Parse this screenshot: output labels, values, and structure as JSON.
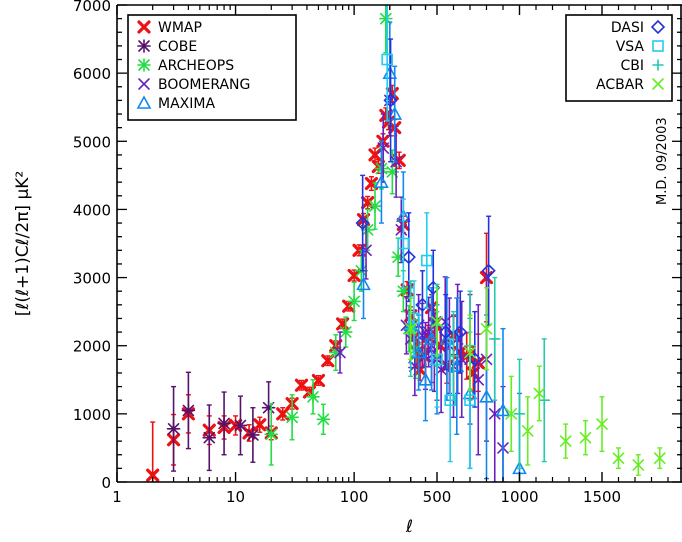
{
  "chart_data": {
    "type": "scatter",
    "title": "",
    "xlabel": "ℓ",
    "ylabel": "[ℓ(ℓ+1)Cℓ/2π] μK²",
    "annotation": "M.D. 09/2003",
    "x_scale": "log-then-linear",
    "x_break": 500,
    "xlim": [
      1,
      1950
    ],
    "ylim": [
      0,
      7000
    ],
    "x_ticks": [
      1,
      10,
      100,
      500,
      1000,
      1500
    ],
    "x_tick_labels": [
      "1",
      "10",
      "100",
      "500",
      "1000",
      "1500"
    ],
    "y_ticks": [
      0,
      1000,
      2000,
      3000,
      4000,
      5000,
      6000,
      7000
    ],
    "y_tick_labels": [
      "0",
      "1000",
      "2000",
      "3000",
      "4000",
      "5000",
      "6000",
      "7000"
    ],
    "grid": false,
    "legend_left": {
      "position": "top-left",
      "entries": [
        {
          "name": "WMAP",
          "color": "#ee1111",
          "marker": "x-bold"
        },
        {
          "name": "COBE",
          "color": "#55116b",
          "marker": "asterisk"
        },
        {
          "name": "ARCHEOPS",
          "color": "#22dd44",
          "marker": "asterisk"
        },
        {
          "name": "BOOMERANG",
          "color": "#6a1fc0",
          "marker": "x"
        },
        {
          "name": "MAXIMA",
          "color": "#1188ee",
          "marker": "triangle"
        }
      ]
    },
    "legend_right": {
      "position": "top-right",
      "entries": [
        {
          "name": "DASI",
          "color": "#2233dd",
          "marker": "diamond"
        },
        {
          "name": "VSA",
          "color": "#22ccee",
          "marker": "square"
        },
        {
          "name": "CBI",
          "color": "#22ccaa",
          "marker": "plus"
        },
        {
          "name": "ACBAR",
          "color": "#66ee22",
          "marker": "x"
        }
      ]
    },
    "series": [
      {
        "name": "WMAP",
        "color": "#ee1111",
        "marker": "x-bold",
        "points": [
          [
            2,
            100,
            780
          ],
          [
            3,
            620,
            370
          ],
          [
            4,
            1000,
            280
          ],
          [
            6,
            760,
            210
          ],
          [
            8,
            800,
            170
          ],
          [
            10,
            830,
            140
          ],
          [
            13,
            720,
            120
          ],
          [
            16,
            840,
            110
          ],
          [
            20,
            720,
            100
          ],
          [
            25,
            1000,
            90
          ],
          [
            30,
            1150,
            80
          ],
          [
            36,
            1420,
            70
          ],
          [
            42,
            1320,
            70
          ],
          [
            50,
            1490,
            70
          ],
          [
            60,
            1780,
            70
          ],
          [
            70,
            2000,
            70
          ],
          [
            80,
            2320,
            70
          ],
          [
            90,
            2580,
            70
          ],
          [
            100,
            3030,
            80
          ],
          [
            110,
            3400,
            80
          ],
          [
            120,
            3850,
            90
          ],
          [
            130,
            4100,
            90
          ],
          [
            140,
            4380,
            100
          ],
          [
            150,
            4800,
            100
          ],
          [
            160,
            4630,
            100
          ],
          [
            175,
            5000,
            110
          ],
          [
            185,
            5380,
            110
          ],
          [
            195,
            5280,
            110
          ],
          [
            210,
            5700,
            120
          ],
          [
            220,
            5200,
            120
          ],
          [
            240,
            4720,
            120
          ],
          [
            260,
            3780,
            120
          ],
          [
            280,
            2820,
            120
          ],
          [
            300,
            2440,
            130
          ],
          [
            320,
            2120,
            140
          ],
          [
            340,
            1900,
            150
          ],
          [
            360,
            1650,
            160
          ],
          [
            390,
            1850,
            160
          ],
          [
            420,
            2130,
            170
          ],
          [
            450,
            2560,
            190
          ],
          [
            480,
            2320,
            210
          ],
          [
            520,
            2000,
            230
          ],
          [
            560,
            1700,
            250
          ],
          [
            600,
            2150,
            280
          ],
          [
            640,
            1900,
            300
          ],
          [
            680,
            1850,
            340
          ],
          [
            720,
            1600,
            380
          ],
          [
            750,
            1750,
            420
          ],
          [
            800,
            3000,
            650
          ]
        ]
      },
      {
        "name": "COBE",
        "color": "#55116b",
        "marker": "asterisk",
        "points": [
          [
            3,
            780,
            620
          ],
          [
            4,
            1050,
            560
          ],
          [
            6,
            650,
            480
          ],
          [
            8,
            860,
            460
          ],
          [
            11,
            830,
            430
          ],
          [
            14,
            690,
            400
          ],
          [
            19,
            1090,
            380
          ]
        ]
      },
      {
        "name": "ARCHEOPS",
        "color": "#22dd44",
        "marker": "asterisk",
        "points": [
          [
            20,
            700,
            450
          ],
          [
            30,
            950,
            330
          ],
          [
            45,
            1250,
            250
          ],
          [
            55,
            920,
            220
          ],
          [
            70,
            1900,
            260
          ],
          [
            85,
            2200,
            220
          ],
          [
            100,
            2650,
            280
          ],
          [
            115,
            3100,
            300
          ],
          [
            130,
            3700,
            300
          ],
          [
            150,
            4050,
            340
          ],
          [
            170,
            4600,
            300
          ],
          [
            185,
            6800,
            500
          ],
          [
            210,
            4550,
            320
          ],
          [
            235,
            3300,
            280
          ],
          [
            260,
            2800,
            300
          ],
          [
            290,
            2250,
            340
          ],
          [
            330,
            1950,
            430
          ]
        ]
      },
      {
        "name": "BOOMERANG",
        "color": "#6a1fc0",
        "marker": "x",
        "points": [
          [
            76,
            1900,
            300
          ],
          [
            126,
            3400,
            420
          ],
          [
            176,
            4900,
            500
          ],
          [
            200,
            5600,
            520
          ],
          [
            226,
            4700,
            520
          ],
          [
            250,
            3700,
            480
          ],
          [
            276,
            2300,
            420
          ],
          [
            300,
            2100,
            420
          ],
          [
            325,
            1700,
            430
          ],
          [
            350,
            2300,
            450
          ],
          [
            375,
            2150,
            470
          ],
          [
            400,
            1850,
            490
          ],
          [
            425,
            2200,
            510
          ],
          [
            450,
            2000,
            540
          ],
          [
            475,
            1900,
            570
          ],
          [
            500,
            1800,
            600
          ],
          [
            525,
            1650,
            630
          ],
          [
            550,
            2350,
            660
          ],
          [
            575,
            2000,
            700
          ],
          [
            600,
            1700,
            750
          ],
          [
            625,
            2100,
            800
          ],
          [
            650,
            1800,
            850
          ],
          [
            700,
            1800,
            950
          ],
          [
            750,
            1500,
            1100
          ],
          [
            800,
            1800,
            1200
          ],
          [
            850,
            1000,
            1100
          ],
          [
            900,
            500,
            900
          ]
        ]
      },
      {
        "name": "MAXIMA",
        "color": "#1188ee",
        "marker": "triangle",
        "points": [
          [
            120,
            2900,
            500
          ],
          [
            170,
            4400,
            600
          ],
          [
            200,
            6000,
            750
          ],
          [
            220,
            5400,
            700
          ],
          [
            260,
            3900,
            650
          ],
          [
            300,
            2300,
            550
          ],
          [
            350,
            1900,
            550
          ],
          [
            400,
            1500,
            600
          ],
          [
            450,
            2100,
            750
          ],
          [
            500,
            1800,
            800
          ],
          [
            560,
            2100,
            900
          ],
          [
            620,
            1700,
            1000
          ],
          [
            700,
            1300,
            1100
          ],
          [
            800,
            1250,
            1200
          ],
          [
            900,
            1050,
            1200
          ],
          [
            1000,
            200,
            1100
          ]
        ]
      },
      {
        "name": "DASI",
        "color": "#2233dd",
        "marker": "diamond",
        "points": [
          [
            118,
            3800,
            700
          ],
          [
            203,
            5600,
            900
          ],
          [
            289,
            3300,
            650
          ],
          [
            377,
            2600,
            500
          ],
          [
            465,
            2850,
            550
          ],
          [
            553,
            2200,
            550
          ],
          [
            641,
            2200,
            600
          ],
          [
            729,
            1800,
            700
          ],
          [
            813,
            3100,
            800
          ]
        ]
      },
      {
        "name": "VSA",
        "color": "#22ccee",
        "marker": "square",
        "points": [
          [
            190,
            6200,
            900
          ],
          [
            260,
            3500,
            650
          ],
          [
            320,
            2400,
            550
          ],
          [
            410,
            3250,
            700
          ],
          [
            500,
            1800,
            700
          ],
          [
            580,
            1200,
            900
          ],
          [
            700,
            1200,
            1000
          ]
        ]
      },
      {
        "name": "CBI",
        "color": "#22ccaa",
        "marker": "plus",
        "points": [
          [
            300,
            2250,
            700
          ],
          [
            500,
            2300,
            600
          ],
          [
            600,
            1850,
            650
          ],
          [
            700,
            2000,
            800
          ],
          [
            850,
            2100,
            900
          ],
          [
            1000,
            1000,
            800
          ],
          [
            1150,
            1200,
            900
          ]
        ]
      },
      {
        "name": "ACBAR",
        "color": "#66ee22",
        "marker": "x",
        "points": [
          [
            300,
            2250,
            450
          ],
          [
            500,
            2350,
            500
          ],
          [
            700,
            1900,
            550
          ],
          [
            800,
            2250,
            600
          ],
          [
            950,
            1000,
            550
          ],
          [
            1050,
            750,
            500
          ],
          [
            1120,
            1300,
            400
          ],
          [
            1280,
            600,
            250
          ],
          [
            1400,
            650,
            250
          ],
          [
            1500,
            850,
            400
          ],
          [
            1600,
            350,
            150
          ],
          [
            1720,
            250,
            150
          ],
          [
            1850,
            350,
            150
          ]
        ]
      }
    ]
  }
}
